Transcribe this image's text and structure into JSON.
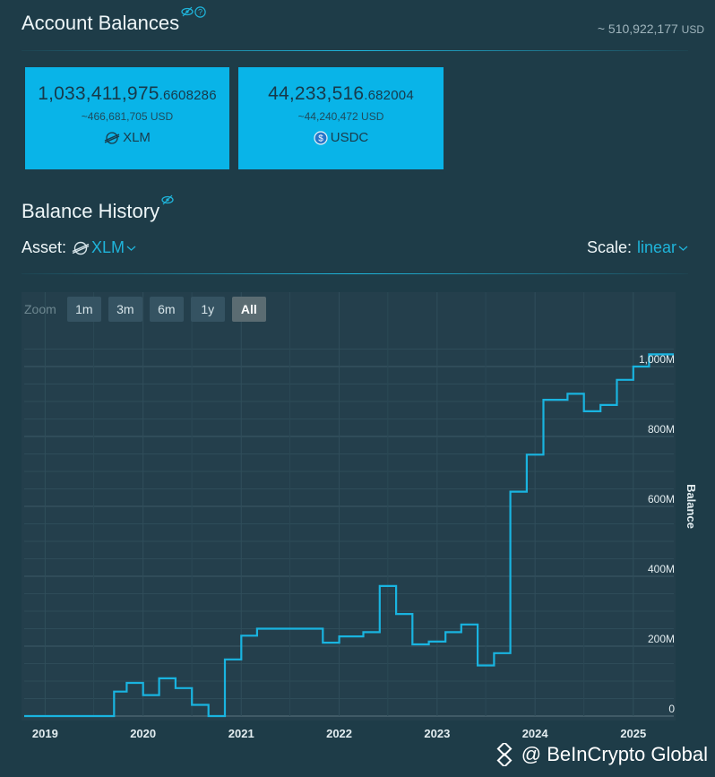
{
  "account": {
    "title": "Account Balances",
    "total_prefix": "~ ",
    "total_value": "510,922,177",
    "total_unit": "USD"
  },
  "balances": [
    {
      "amount_int": "1,033,411,975",
      "amount_frac": ".6608286",
      "usd": "~466,681,705 USD",
      "code": "XLM",
      "icon": "stellar-icon"
    },
    {
      "amount_int": "44,233,516",
      "amount_frac": ".682004",
      "usd": "~44,240,472 USD",
      "code": "USDC",
      "icon": "usdc-icon"
    }
  ],
  "history": {
    "title": "Balance History",
    "asset_label": "Asset:",
    "asset_value": "XLM",
    "scale_label": "Scale:",
    "scale_value": "linear"
  },
  "zoom": {
    "label": "Zoom",
    "buttons": [
      "1m",
      "3m",
      "6m",
      "1y",
      "All"
    ],
    "active": "All"
  },
  "chart_data": {
    "type": "line",
    "step": true,
    "ylabel": "Balance",
    "ylim": [
      0,
      1050
    ],
    "yunit": "M",
    "y_ticks": [
      {
        "value": 0,
        "label": "0"
      },
      {
        "value": 200,
        "label": "200M"
      },
      {
        "value": 400,
        "label": "400M"
      },
      {
        "value": 600,
        "label": "600M"
      },
      {
        "value": 800,
        "label": "800M"
      },
      {
        "value": 1000,
        "label": "1,000M"
      }
    ],
    "x_ticks": [
      "2019",
      "2020",
      "2021",
      "2022",
      "2023",
      "2024",
      "2025"
    ],
    "xlim": [
      "2018-10-15",
      "2025-06-01"
    ],
    "series": [
      {
        "color": "#19b4e0",
        "points": [
          [
            "2018-10-15",
            0
          ],
          [
            "2019-09-15",
            70
          ],
          [
            "2019-11-01",
            95
          ],
          [
            "2020-01-01",
            60
          ],
          [
            "2020-03-01",
            108
          ],
          [
            "2020-05-01",
            80
          ],
          [
            "2020-07-01",
            32
          ],
          [
            "2020-09-01",
            0
          ],
          [
            "2020-11-01",
            162
          ],
          [
            "2021-01-01",
            230
          ],
          [
            "2021-03-01",
            250
          ],
          [
            "2021-11-01",
            210
          ],
          [
            "2022-01-01",
            228
          ],
          [
            "2022-04-01",
            240
          ],
          [
            "2022-06-01",
            372
          ],
          [
            "2022-08-01",
            292
          ],
          [
            "2022-10-01",
            205
          ],
          [
            "2022-12-01",
            213
          ],
          [
            "2023-02-01",
            240
          ],
          [
            "2023-04-01",
            262
          ],
          [
            "2023-06-01",
            145
          ],
          [
            "2023-08-01",
            180
          ],
          [
            "2023-10-01",
            642
          ],
          [
            "2023-12-01",
            748
          ],
          [
            "2024-02-01",
            905
          ],
          [
            "2024-05-01",
            922
          ],
          [
            "2024-07-01",
            872
          ],
          [
            "2024-09-01",
            890
          ],
          [
            "2024-11-01",
            962
          ],
          [
            "2025-01-01",
            1000
          ],
          [
            "2025-03-01",
            1035
          ],
          [
            "2025-06-01",
            1035
          ]
        ]
      }
    ],
    "grid": true
  },
  "watermark": {
    "text": "@ BeInCrypto Global"
  }
}
